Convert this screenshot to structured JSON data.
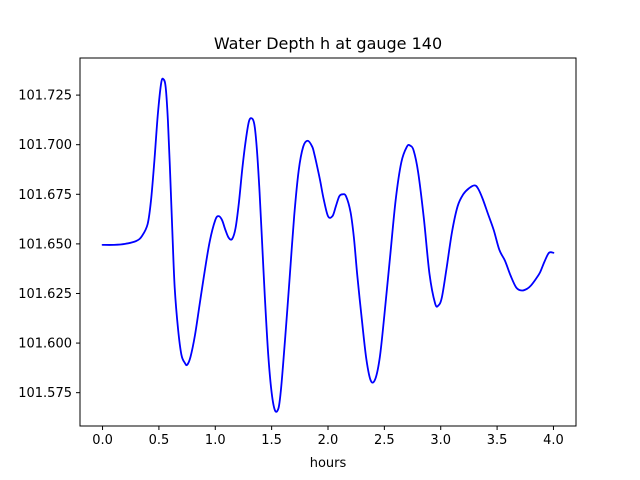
{
  "chart_data": {
    "type": "line",
    "title": "Water Depth h at gauge 140",
    "xlabel": "hours",
    "ylabel": "",
    "xlim": [
      -0.2,
      4.2
    ],
    "ylim": [
      101.5582,
      101.7437
    ],
    "x_ticks": [
      0.0,
      0.5,
      1.0,
      1.5,
      2.0,
      2.5,
      3.0,
      3.5,
      4.0
    ],
    "x_tick_labels": [
      "0.0",
      "0.5",
      "1.0",
      "1.5",
      "2.0",
      "2.5",
      "3.0",
      "3.5",
      "4.0"
    ],
    "y_ticks": [
      101.575,
      101.6,
      101.625,
      101.65,
      101.675,
      101.7,
      101.725
    ],
    "y_tick_labels": [
      "101.575",
      "101.600",
      "101.625",
      "101.650",
      "101.675",
      "101.700",
      "101.725"
    ],
    "grid": false,
    "legend": "none",
    "series": [
      {
        "color": "#0000ff",
        "x": [
          0.0,
          0.1,
          0.2,
          0.3,
          0.35,
          0.4,
          0.43,
          0.46,
          0.49,
          0.52,
          0.54,
          0.56,
          0.58,
          0.6,
          0.62,
          0.64,
          0.67,
          0.7,
          0.73,
          0.75,
          0.78,
          0.82,
          0.86,
          0.9,
          0.95,
          1.0,
          1.03,
          1.06,
          1.09,
          1.12,
          1.15,
          1.18,
          1.21,
          1.24,
          1.27,
          1.3,
          1.33,
          1.35,
          1.37,
          1.39,
          1.41,
          1.44,
          1.47,
          1.5,
          1.53,
          1.56,
          1.58,
          1.6,
          1.63,
          1.66,
          1.7,
          1.74,
          1.78,
          1.82,
          1.86,
          1.88,
          1.9,
          1.93,
          1.96,
          2.0,
          2.04,
          2.07,
          2.1,
          2.13,
          2.16,
          2.2,
          2.23,
          2.26,
          2.3,
          2.34,
          2.38,
          2.42,
          2.46,
          2.5,
          2.55,
          2.6,
          2.65,
          2.7,
          2.73,
          2.76,
          2.8,
          2.85,
          2.9,
          2.95,
          2.98,
          3.01,
          3.05,
          3.1,
          3.15,
          3.2,
          3.25,
          3.3,
          3.33,
          3.37,
          3.42,
          3.47,
          3.52,
          3.57,
          3.62,
          3.67,
          3.72,
          3.77,
          3.8,
          3.84,
          3.88,
          3.92,
          3.96,
          4.0
        ],
        "y": [
          101.6495,
          101.6495,
          101.65,
          101.6515,
          101.654,
          101.66,
          101.672,
          101.692,
          101.715,
          101.731,
          101.733,
          101.729,
          101.712,
          101.685,
          101.655,
          101.628,
          101.607,
          101.594,
          101.59,
          101.589,
          101.593,
          101.604,
          101.619,
          101.634,
          101.651,
          101.662,
          101.664,
          101.662,
          101.657,
          101.653,
          101.6525,
          101.658,
          101.671,
          101.688,
          101.702,
          101.712,
          101.713,
          101.709,
          101.697,
          101.679,
          101.657,
          101.623,
          101.594,
          101.575,
          101.566,
          101.567,
          101.575,
          101.588,
          101.61,
          101.633,
          101.664,
          101.687,
          101.699,
          101.702,
          101.699,
          101.695,
          101.69,
          101.682,
          101.673,
          101.664,
          101.664,
          101.669,
          101.674,
          101.675,
          101.674,
          101.666,
          101.653,
          101.634,
          101.612,
          101.592,
          101.581,
          101.582,
          101.593,
          101.614,
          101.643,
          101.672,
          101.691,
          101.699,
          101.6995,
          101.697,
          101.686,
          101.663,
          101.635,
          101.62,
          101.619,
          101.623,
          101.637,
          101.656,
          101.669,
          101.675,
          101.678,
          101.6795,
          101.678,
          101.673,
          101.665,
          101.657,
          101.647,
          101.6415,
          101.634,
          101.628,
          101.6265,
          101.6275,
          101.629,
          101.632,
          101.6355,
          101.641,
          101.6455,
          101.6455
        ]
      }
    ]
  }
}
